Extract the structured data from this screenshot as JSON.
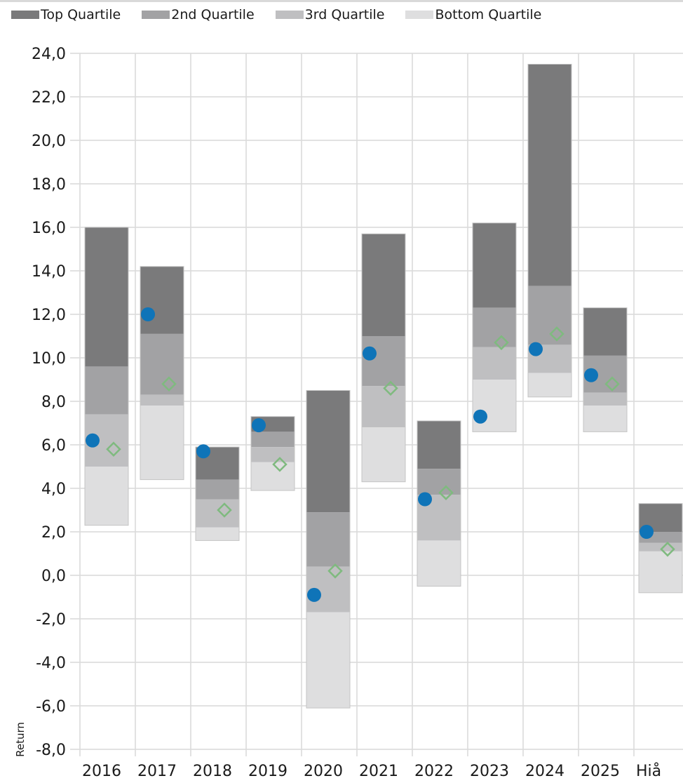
{
  "legend": [
    {
      "label": "Top Quartile",
      "color": "#7a7a7b"
    },
    {
      "label": "2nd Quartile",
      "color": "#a2a2a4"
    },
    {
      "label": "3rd Quartile",
      "color": "#bfbfc1"
    },
    {
      "label": "Bottom Quartile",
      "color": "#dededf"
    }
  ],
  "chart_data": {
    "type": "bar",
    "subtype": "floating-stacked-quartile-ranges-with-markers",
    "ylabel": "Return",
    "ylim": [
      -8.0,
      24.0
    ],
    "yticks": [
      "24,0",
      "22,0",
      "20,0",
      "18,0",
      "16,0",
      "14,0",
      "12,0",
      "10,0",
      "8,0",
      "6,0",
      "4,0",
      "2,0",
      "0,0",
      "-2,0",
      "-4,0",
      "-6,0",
      "-8,0"
    ],
    "ytick_values": [
      24,
      22,
      20,
      18,
      16,
      14,
      12,
      10,
      8,
      6,
      4,
      2,
      0,
      -2,
      -4,
      -6,
      -8
    ],
    "categories": [
      "2016",
      "2017",
      "2018",
      "2019",
      "2020",
      "2021",
      "2022",
      "2023",
      "2024",
      "2025",
      "Hiå"
    ],
    "grid": "horizontal and vertical",
    "legend_position": "top",
    "boundaries": {
      "top": [
        16.0,
        14.2,
        5.9,
        7.3,
        8.5,
        15.7,
        7.1,
        16.2,
        23.5,
        12.3,
        3.3
      ],
      "q1": [
        9.6,
        11.1,
        4.4,
        6.6,
        2.9,
        11.0,
        4.9,
        12.3,
        13.3,
        10.1,
        2.0
      ],
      "median": [
        7.4,
        8.3,
        3.5,
        5.9,
        0.4,
        8.7,
        3.7,
        10.5,
        10.6,
        8.4,
        1.5
      ],
      "q3": [
        5.0,
        7.8,
        2.2,
        5.2,
        -1.7,
        6.8,
        1.6,
        9.0,
        9.3,
        7.8,
        1.1
      ],
      "bottom": [
        2.3,
        4.4,
        1.6,
        3.9,
        -6.1,
        4.3,
        -0.5,
        6.6,
        8.2,
        6.6,
        -0.8
      ]
    },
    "series": [
      {
        "marker": "circle",
        "color": "#0f74b8",
        "values": [
          6.2,
          12.0,
          5.7,
          6.9,
          -0.9,
          10.2,
          3.5,
          7.3,
          10.4,
          9.2,
          2.0
        ]
      },
      {
        "marker": "diamond",
        "color": "#7fba7f",
        "values": [
          5.8,
          8.8,
          3.0,
          5.1,
          0.2,
          8.6,
          3.8,
          10.7,
          11.1,
          8.8,
          1.2
        ]
      }
    ]
  }
}
